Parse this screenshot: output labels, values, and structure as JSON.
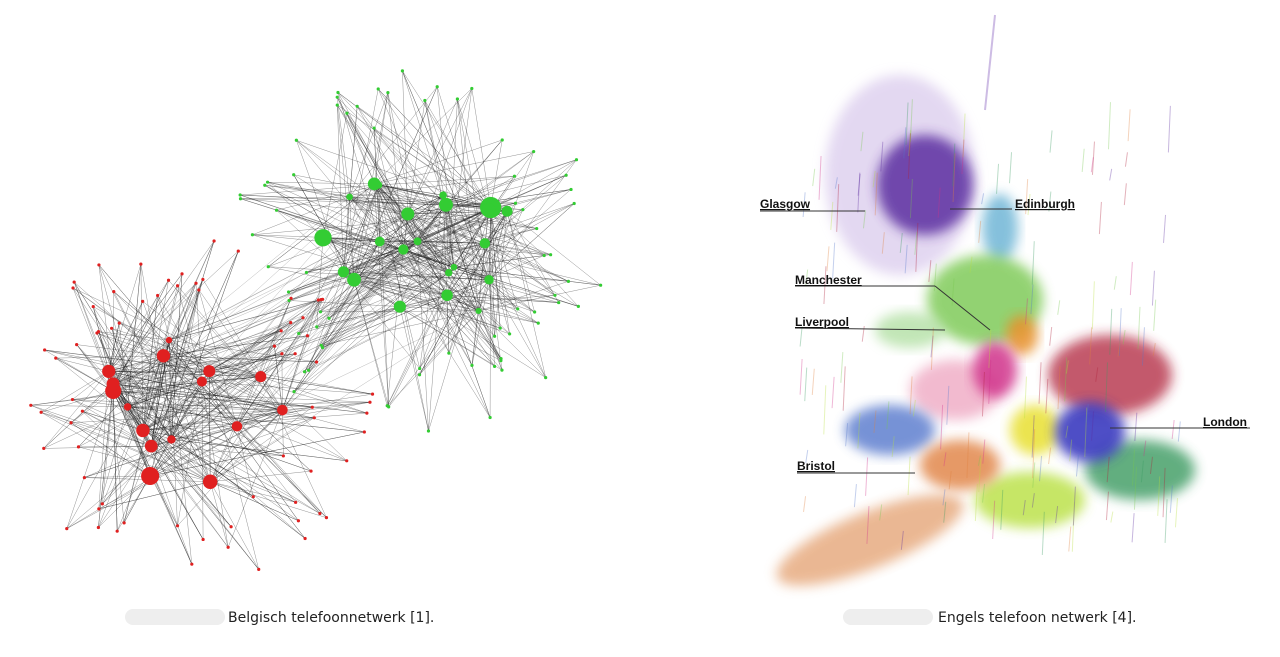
{
  "figures": [
    {
      "caption": "Belgisch telefoonnetwerk [1]."
    },
    {
      "caption": "Engels telefoon netwerk [4].",
      "labels": [
        "Glasgow",
        "Edinburgh",
        "Manchester",
        "Liverpool",
        "Bristol",
        "London"
      ]
    }
  ]
}
